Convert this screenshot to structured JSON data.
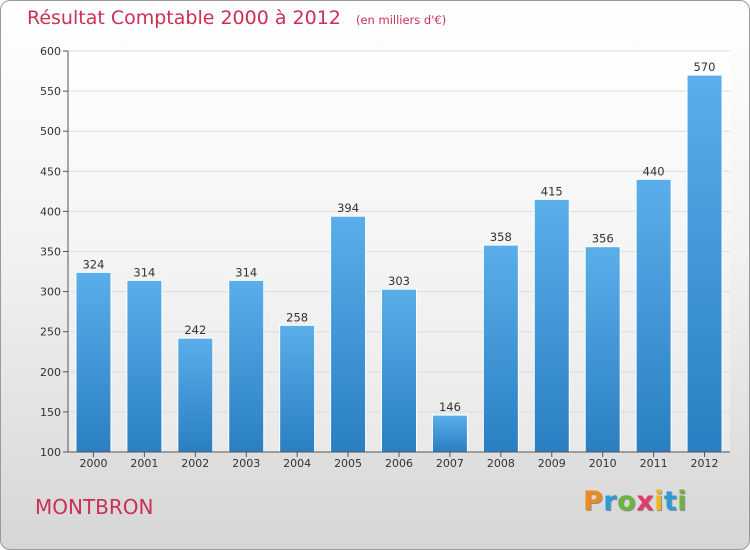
{
  "chart_data": {
    "type": "bar",
    "title": "Résultat Comptable 2000 à 2012",
    "subtitle": "(en milliers d'€)",
    "categories": [
      "2000",
      "2001",
      "2002",
      "2003",
      "2004",
      "2005",
      "2006",
      "2007",
      "2008",
      "2009",
      "2010",
      "2011",
      "2012"
    ],
    "values": [
      324,
      314,
      242,
      314,
      258,
      394,
      303,
      146,
      358,
      415,
      356,
      440,
      570
    ],
    "value_labels": [
      "324",
      "314",
      "242",
      "314",
      "258",
      "394",
      "303",
      "146",
      "358",
      "415",
      "356",
      "440",
      "570"
    ],
    "yticks": [
      "100",
      "150",
      "200",
      "250",
      "300",
      "350",
      "400",
      "450",
      "500",
      "550",
      "600"
    ],
    "ylim": [
      100,
      600
    ],
    "grid": true,
    "bar_color": "#4da3e2"
  },
  "footer": {
    "place_name": "MONTBRON",
    "logo_letters": [
      "P",
      "r",
      "o",
      "x",
      "i",
      "t",
      "i"
    ],
    "logo_colors": [
      "#f08a1c",
      "#2d9ad8",
      "#6db33f",
      "#e23a6a",
      "#f2b320",
      "#2d9ad8",
      "#6db33f"
    ]
  }
}
